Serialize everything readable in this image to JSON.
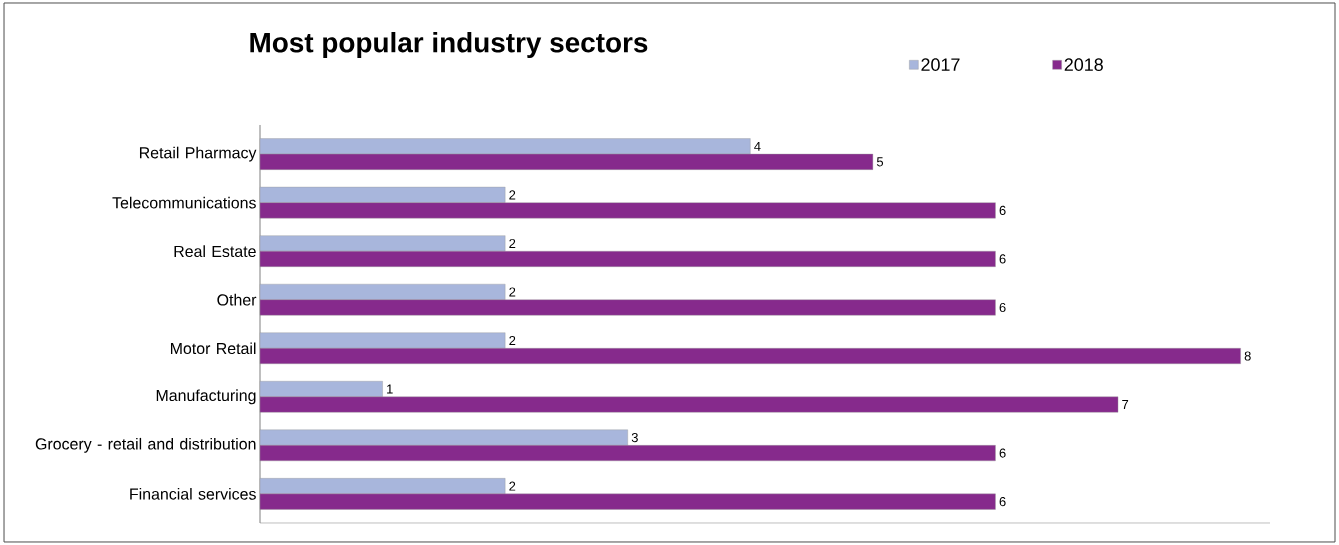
{
  "chart_data": {
    "type": "bar",
    "orientation": "horizontal",
    "title": "Most popular industry sectors",
    "categories": [
      "Retail Pharmacy",
      "Telecommunications",
      "Real Estate",
      "Other",
      "Motor Retail",
      "Manufacturing",
      "Grocery - retail and distribution",
      "Financial services"
    ],
    "series": [
      {
        "name": "2017",
        "color": "#a8b6dc",
        "values": [
          4,
          2,
          2,
          2,
          2,
          1,
          3,
          2
        ]
      },
      {
        "name": "2018",
        "color": "#862a8c",
        "values": [
          5,
          6,
          6,
          6,
          8,
          7,
          6,
          6
        ]
      }
    ],
    "data_labels": true,
    "legend": "top right"
  }
}
